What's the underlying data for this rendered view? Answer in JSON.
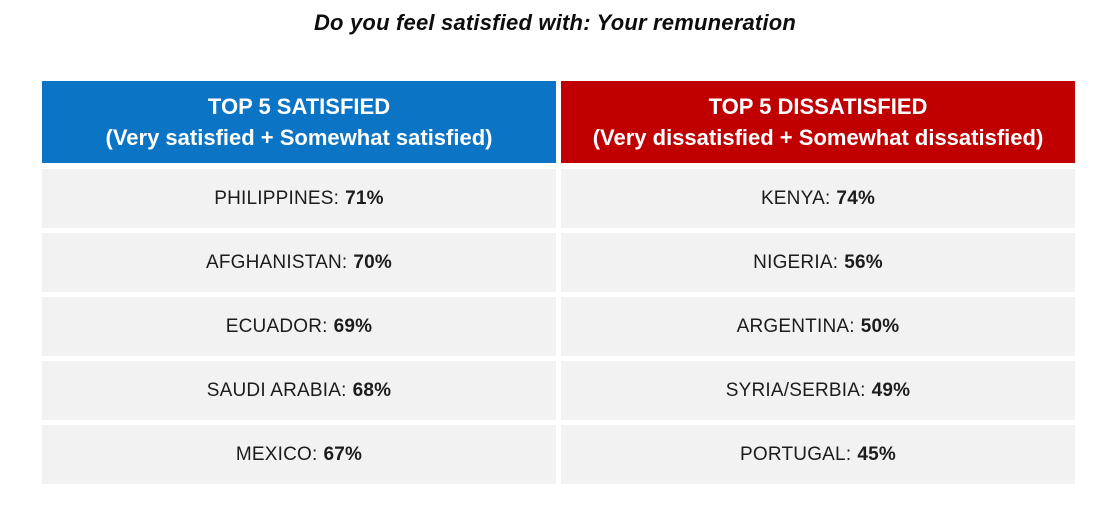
{
  "title": "Do you feel satisfied with: Your remuneration",
  "colors": {
    "satisfied_header_bg": "#0B74C4",
    "dissatisfied_header_bg": "#C00000",
    "row_bg": "#F2F2F2",
    "row_text": "#1C1C1C",
    "header_text": "#FFFFFF"
  },
  "columns": {
    "satisfied": {
      "title": "TOP 5 SATISFIED",
      "subtitle": "(Very satisfied + Somewhat satisfied)",
      "rows": [
        {
          "label": "PHILIPPINES:",
          "value": "71%"
        },
        {
          "label": "AFGHANISTAN:",
          "value": "70%"
        },
        {
          "label": "ECUADOR:",
          "value": "69%"
        },
        {
          "label": "SAUDI ARABIA:",
          "value": "68%"
        },
        {
          "label": "MEXICO:",
          "value": "67%"
        }
      ]
    },
    "dissatisfied": {
      "title": "TOP 5 DISSATISFIED",
      "subtitle": "(Very dissatisfied + Somewhat dissatisfied)",
      "rows": [
        {
          "label": "KENYA:",
          "value": "74%"
        },
        {
          "label": "NIGERIA:",
          "value": "56%"
        },
        {
          "label": "ARGENTINA:",
          "value": "50%"
        },
        {
          "label": "SYRIA/SERBIA:",
          "value": "49%"
        },
        {
          "label": "PORTUGAL:",
          "value": "45%"
        }
      ]
    }
  },
  "chart_data": {
    "type": "table",
    "title": "Do you feel satisfied with: Your remuneration",
    "series": [
      {
        "name": "TOP 5 SATISFIED (Very satisfied + Somewhat satisfied)",
        "categories": [
          "PHILIPPINES",
          "AFGHANISTAN",
          "ECUADOR",
          "SAUDI ARABIA",
          "MEXICO"
        ],
        "values": [
          71,
          70,
          69,
          68,
          67
        ],
        "unit": "%"
      },
      {
        "name": "TOP 5 DISSATISFIED (Very dissatisfied + Somewhat dissatisfied)",
        "categories": [
          "KENYA",
          "NIGERIA",
          "ARGENTINA",
          "SYRIA/SERBIA",
          "PORTUGAL"
        ],
        "values": [
          74,
          56,
          50,
          49,
          45
        ],
        "unit": "%"
      }
    ],
    "legend_position": "none",
    "grid": false
  }
}
